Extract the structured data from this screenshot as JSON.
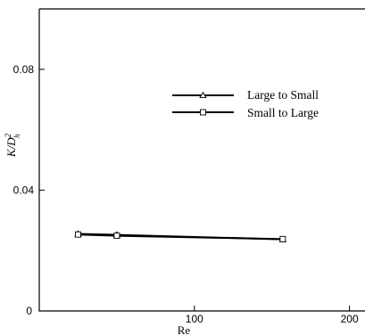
{
  "chart_data": {
    "type": "line",
    "xlabel": "Re",
    "ylabel": "K/D",
    "ylabel_sup": "2",
    "ylabel_sub": "h",
    "xlim": [
      0,
      210
    ],
    "ylim": [
      0,
      0.1
    ],
    "x_ticks": [
      100,
      200
    ],
    "x_tick_labels": [
      "100",
      "200"
    ],
    "y_ticks": [
      0,
      0.04,
      0.08
    ],
    "y_tick_labels": [
      "0",
      "0.04",
      "0.08"
    ],
    "origin_label": "0",
    "grid": false,
    "legend_position": "top-right",
    "series": [
      {
        "name": "Large to Small",
        "marker": "triangle",
        "color": "#000000",
        "x": [
          25,
          50,
          157
        ],
        "y": [
          0.0255,
          0.0252,
          0.0237
        ]
      },
      {
        "name": "Small to Large",
        "marker": "square",
        "color": "#000000",
        "x": [
          25,
          50,
          157
        ],
        "y": [
          0.0253,
          0.0249,
          0.0238
        ]
      }
    ]
  }
}
